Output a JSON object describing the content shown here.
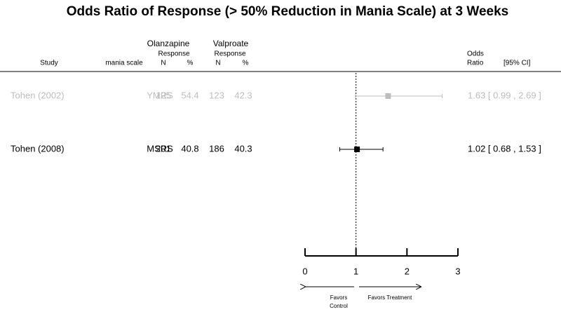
{
  "chart_data": {
    "type": "forest",
    "title": "Odds Ratio of Response (> 50% Reduction in Mania Scale) at 3 Weeks",
    "headers": {
      "study": "Study",
      "scale": "mania scale",
      "group1": "Olanzapine",
      "group1_sub": "Response",
      "group1_n": "N",
      "group1_pct": "%",
      "group2": "Valproate",
      "group2_sub": "Response",
      "group2_n": "N",
      "group2_pct": "%",
      "or": [
        "Odds",
        "Ratio"
      ],
      "ci": "[95% CI]"
    },
    "studies": [
      {
        "name": "Tohen (2002)",
        "scale": "YMRS",
        "group1_n": 125,
        "group1_pct": 54.4,
        "group2_n": 123,
        "group2_pct": 42.3,
        "or": 1.63,
        "ci": [
          0.99,
          2.69
        ],
        "or_label": "1.63 [ 0.99 , 2.69 ]",
        "color": "#bdbdbd"
      },
      {
        "name": "Tohen (2008)",
        "scale": "MSRS",
        "group1_n": 201,
        "group1_pct": 40.8,
        "group2_n": 186,
        "group2_pct": 40.3,
        "or": 1.02,
        "ci": [
          0.68,
          1.53
        ],
        "or_label": "1.02 [ 0.68 , 1.53 ]",
        "color": "#000000"
      }
    ],
    "ref_line": 1,
    "xlim": [
      0,
      3
    ],
    "xticks": [
      0,
      1,
      2,
      3
    ],
    "favors_left": [
      "Favors",
      "Control"
    ],
    "favors_right": "Favors Treatment"
  }
}
